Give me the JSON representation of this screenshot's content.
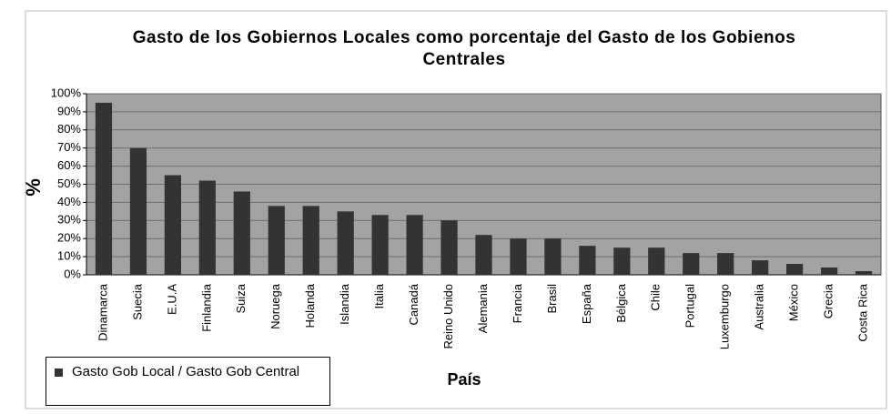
{
  "chart_data": {
    "type": "bar",
    "title": "Gasto de los Gobiernos  Locales como porcentaje del Gasto de los Gobienos Centrales",
    "x_label": "País",
    "y_label": "%",
    "categories": [
      "Dinamarca",
      "Suecia",
      "E.U.A",
      "Finlandia",
      "Suiza",
      "Noruega",
      "Holanda",
      "Islandia",
      "Italia",
      "Canadá",
      "Reino Unido",
      "Alemania",
      "Francia",
      "Brasil",
      "España",
      "Bélgica",
      "Chile",
      "Portugal",
      "Luxemburgo",
      "Australia",
      "México",
      "Grecia",
      "Costa Rica"
    ],
    "series": [
      {
        "name": "Gasto Gob Local /  Gasto Gob Central",
        "color": "#333333",
        "values": [
          95,
          70,
          55,
          52,
          46,
          38,
          38,
          35,
          33,
          33,
          30,
          22,
          20,
          20,
          16,
          15,
          15,
          12,
          12,
          8,
          6,
          4,
          2
        ]
      }
    ],
    "ylim": [
      0,
      100
    ],
    "yticks": [
      {
        "value": 0,
        "label": "0%"
      },
      {
        "value": 10,
        "label": "10%"
      },
      {
        "value": 20,
        "label": "20%"
      },
      {
        "value": 30,
        "label": "30%"
      },
      {
        "value": 40,
        "label": "40%"
      },
      {
        "value": 50,
        "label": "50%"
      },
      {
        "value": 60,
        "label": "60%"
      },
      {
        "value": 70,
        "label": "70%"
      },
      {
        "value": 80,
        "label": "80%"
      },
      {
        "value": 90,
        "label": "90%"
      },
      {
        "value": 100,
        "label": "100%"
      }
    ],
    "grid": true,
    "legend": "bottom-left"
  }
}
